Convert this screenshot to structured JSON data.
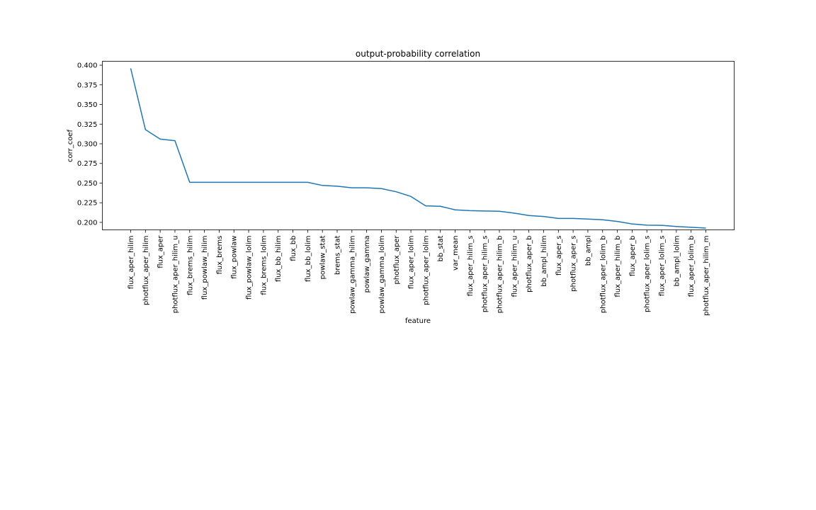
{
  "chart_data": {
    "type": "line",
    "title": "output-probability correlation",
    "xlabel": "feature",
    "ylabel": "corr_coef",
    "ylim": [
      0.1905,
      0.405
    ],
    "yticks": [
      "0.200",
      "0.225",
      "0.250",
      "0.275",
      "0.300",
      "0.325",
      "0.350",
      "0.375",
      "0.400"
    ],
    "ytick_values": [
      0.2,
      0.225,
      0.25,
      0.275,
      0.3,
      0.325,
      0.35,
      0.375,
      0.4
    ],
    "grid": false,
    "line_color": "#1f77b4",
    "categories": [
      "flux_aper_hilim",
      "photflux_aper_hilim",
      "flux_aper",
      "photflux_aper_hilim_u",
      "flux_brems_hilim",
      "flux_powlaw_hilim",
      "flux_brems",
      "flux_powlaw",
      "flux_powlaw_lolim",
      "flux_brems_lolim",
      "flux_bb_hilim",
      "flux_bb",
      "flux_bb_lolim",
      "powlaw_stat",
      "brems_stat",
      "powlaw_gamma_hilim",
      "powlaw_gamma",
      "powlaw_gamma_lolim",
      "photflux_aper",
      "flux_aper_lolim",
      "photflux_aper_lolim",
      "bb_stat",
      "var_mean",
      "flux_aper_hilim_s",
      "photflux_aper_hilim_s",
      "photflux_aper_hilim_b",
      "flux_aper_hilim_u",
      "photflux_aper_b",
      "bb_ampl_hilim",
      "flux_aper_s",
      "photflux_aper_s",
      "bb_ampl",
      "photflux_aper_lolim_b",
      "flux_aper_hilim_b",
      "flux_aper_b",
      "photflux_aper_lolim_s",
      "flux_aper_lolim_s",
      "bb_ampl_lolim",
      "flux_aper_lolim_b",
      "photflux_aper_hilim_m"
    ],
    "values": [
      0.396,
      0.318,
      0.306,
      0.304,
      0.251,
      0.251,
      0.251,
      0.251,
      0.251,
      0.251,
      0.251,
      0.251,
      0.251,
      0.247,
      0.246,
      0.244,
      0.244,
      0.243,
      0.239,
      0.233,
      0.221,
      0.2205,
      0.216,
      0.215,
      0.2145,
      0.2142,
      0.2118,
      0.2088,
      0.2075,
      0.205,
      0.205,
      0.2043,
      0.2033,
      0.2012,
      0.198,
      0.1965,
      0.1962,
      0.1948,
      0.1938,
      0.1928
    ]
  }
}
